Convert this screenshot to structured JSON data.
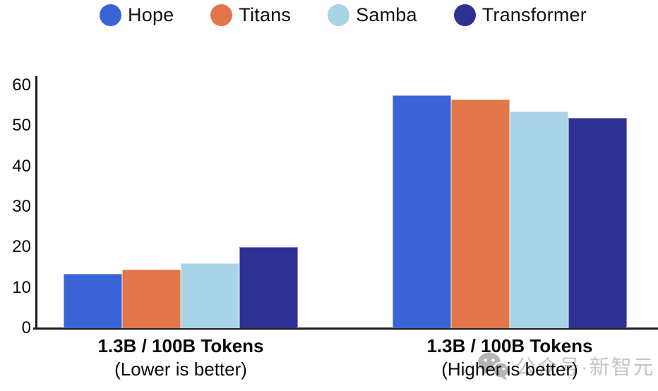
{
  "legend": {
    "items": [
      {
        "label": "Hope",
        "color": "#3B63D6"
      },
      {
        "label": "Titans",
        "color": "#E2764A"
      },
      {
        "label": "Samba",
        "color": "#A9D3E7"
      },
      {
        "label": "Transformer",
        "color": "#2E3191"
      }
    ]
  },
  "chart_data": {
    "type": "bar",
    "title": "",
    "groups": [
      {
        "title": "1.3B / 100B Tokens",
        "subtitle": "(Lower is better)"
      },
      {
        "title": "1.3B / 100B Tokens",
        "subtitle": "(Higher is better)"
      }
    ],
    "series": [
      {
        "name": "Hope",
        "color": "#3B63D6",
        "values": [
          13.5,
          57.5
        ]
      },
      {
        "name": "Titans",
        "color": "#E2764A",
        "values": [
          14.5,
          56.5
        ]
      },
      {
        "name": "Samba",
        "color": "#A9D3E7",
        "values": [
          16.0,
          53.5
        ]
      },
      {
        "name": "Transformer",
        "color": "#2E3191",
        "values": [
          20.0,
          52.0
        ]
      }
    ],
    "ylim": [
      0,
      60
    ],
    "yticks": [
      0,
      10,
      20,
      30,
      40,
      50,
      60
    ],
    "grid": false,
    "legend_position": "top",
    "axis_color": "#1c1c1e"
  },
  "watermark": {
    "icon": "wechat-icon",
    "text": "公众号·新智元",
    "color": "#c3c3c3"
  }
}
